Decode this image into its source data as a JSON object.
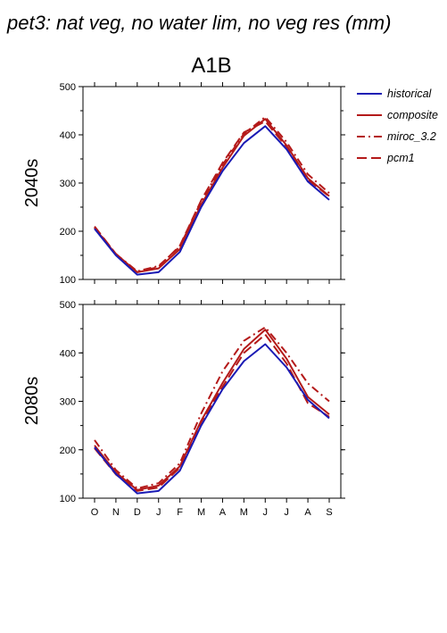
{
  "figure": {
    "title": "pet3: nat veg, no water lim, no veg res (mm)",
    "scenario": "A1B"
  },
  "legend": [
    {
      "label": "historical",
      "color": "#1a1ab4",
      "dash": "solid"
    },
    {
      "label": "composite",
      "color": "#b41a1a",
      "dash": "solid"
    },
    {
      "label": "miroc_3.2",
      "color": "#b41a1a",
      "dash": "dashdot"
    },
    {
      "label": "pcm1",
      "color": "#b41a1a",
      "dash": "dash"
    }
  ],
  "chart_data": [
    {
      "type": "line",
      "period_label": "2040s",
      "categories": [
        "O",
        "N",
        "D",
        "J",
        "F",
        "M",
        "A",
        "M",
        "J",
        "J",
        "A",
        "S"
      ],
      "yticks": [
        100,
        200,
        300,
        400,
        500
      ],
      "ylim": [
        100,
        500
      ],
      "series": [
        {
          "name": "historical",
          "values": [
            205,
            150,
            110,
            115,
            157,
            250,
            325,
            383,
            418,
            370,
            303,
            265
          ]
        },
        {
          "name": "composite",
          "values": [
            207,
            152,
            115,
            123,
            163,
            255,
            332,
            398,
            433,
            378,
            310,
            273
          ]
        },
        {
          "name": "miroc_3.2",
          "values": [
            208,
            153,
            117,
            128,
            168,
            262,
            338,
            402,
            437,
            385,
            318,
            279
          ]
        },
        {
          "name": "pcm1",
          "values": [
            210,
            153,
            115,
            126,
            170,
            264,
            342,
            405,
            428,
            375,
            307,
            272
          ]
        }
      ]
    },
    {
      "type": "line",
      "period_label": "2080s",
      "categories": [
        "O",
        "N",
        "D",
        "J",
        "F",
        "M",
        "A",
        "M",
        "J",
        "J",
        "A",
        "S"
      ],
      "yticks": [
        100,
        200,
        300,
        400,
        500
      ],
      "ylim": [
        100,
        500
      ],
      "series": [
        {
          "name": "historical",
          "values": [
            205,
            150,
            110,
            115,
            157,
            250,
            325,
            383,
            418,
            370,
            303,
            265
          ]
        },
        {
          "name": "composite",
          "values": [
            209,
            153,
            117,
            126,
            166,
            260,
            338,
            408,
            448,
            388,
            309,
            273
          ]
        },
        {
          "name": "miroc_3.2",
          "values": [
            220,
            158,
            120,
            131,
            172,
            275,
            362,
            425,
            453,
            400,
            337,
            300
          ]
        },
        {
          "name": "pcm1",
          "values": [
            203,
            149,
            115,
            122,
            163,
            257,
            330,
            400,
            438,
            378,
            296,
            268
          ]
        }
      ]
    }
  ]
}
